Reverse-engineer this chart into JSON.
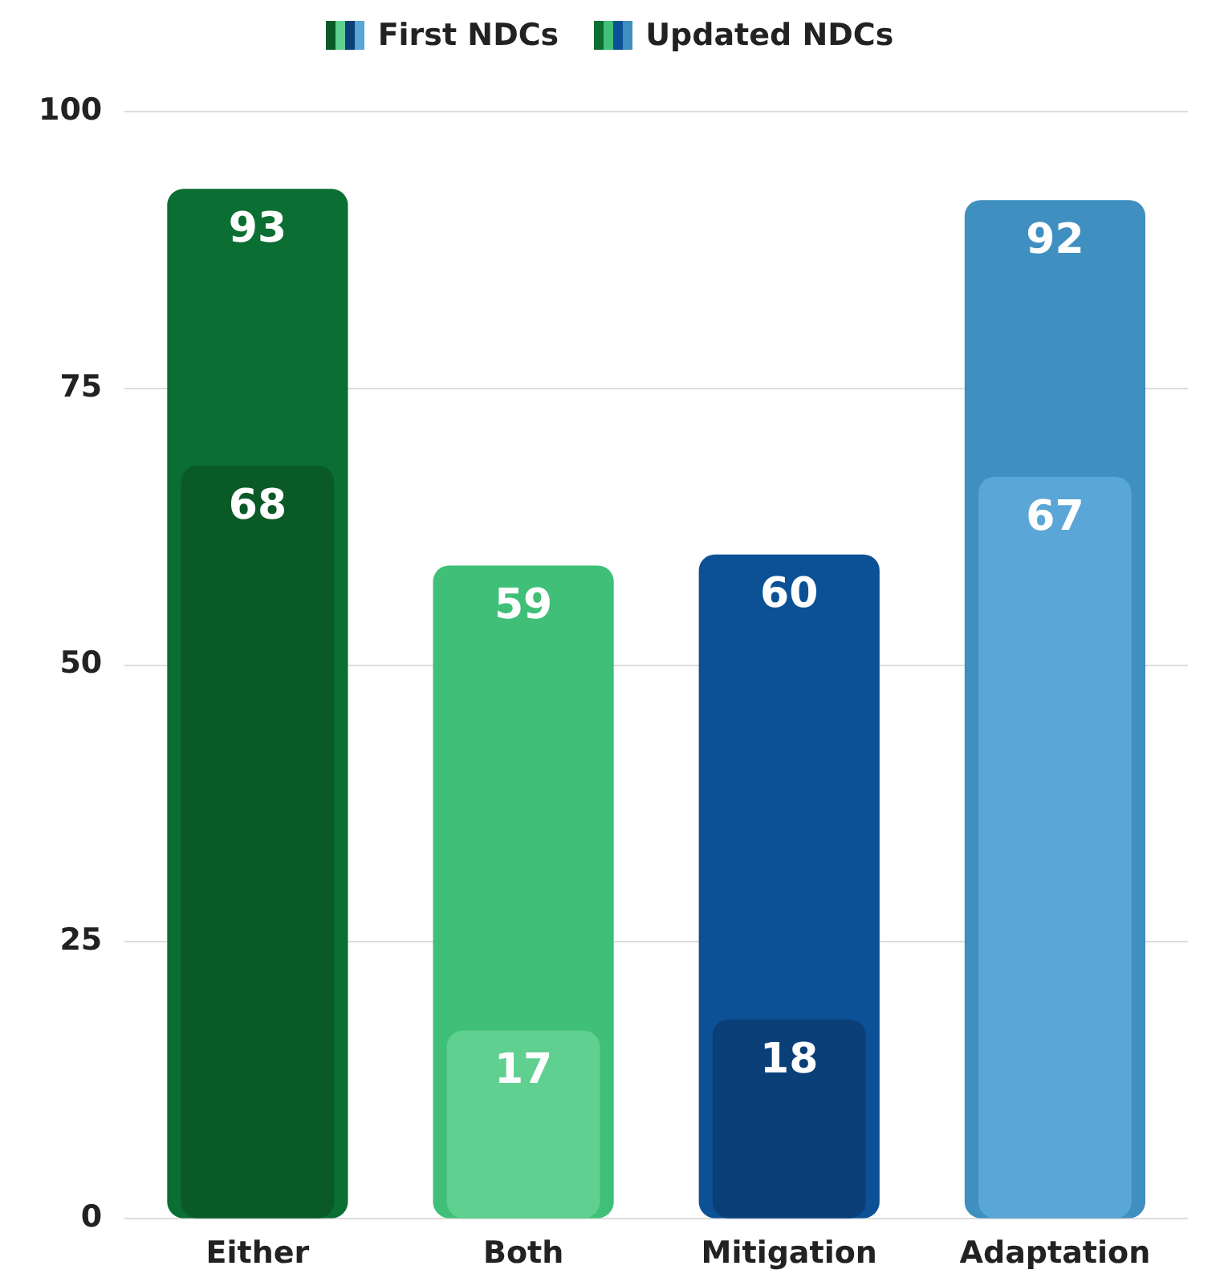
{
  "chart_data": {
    "type": "bar",
    "categories": [
      "Either",
      "Both",
      "Mitigation",
      "Adaptation"
    ],
    "series": [
      {
        "name": "First NDCs",
        "colors": [
          "#0a5a28",
          "#5fd08f",
          "#0a3f78",
          "#5aa6d6"
        ],
        "values": [
          68,
          17,
          18,
          67
        ]
      },
      {
        "name": "Updated NDCs",
        "colors": [
          "#0b6e32",
          "#40bf78",
          "#0c5195",
          "#3f8fc0"
        ],
        "values": [
          93,
          59,
          60,
          92
        ]
      }
    ],
    "ylim": [
      0,
      100
    ],
    "yticks": [
      0,
      25,
      50,
      75,
      100
    ],
    "grid": "y",
    "legend": "top",
    "data_labels": true
  }
}
